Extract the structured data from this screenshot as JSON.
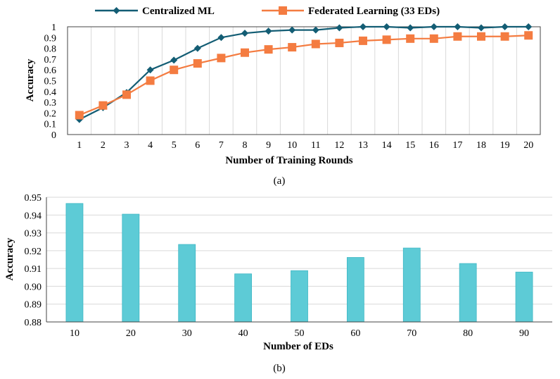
{
  "chart_data": [
    {
      "type": "line",
      "panel_label": "(a)",
      "title": "",
      "xlabel": "Number of Training Rounds",
      "ylabel": "Accuracy",
      "x": [
        1,
        2,
        3,
        4,
        5,
        6,
        7,
        8,
        9,
        10,
        11,
        12,
        13,
        14,
        15,
        16,
        17,
        18,
        19,
        20
      ],
      "ylim": [
        0,
        1
      ],
      "yticks": [
        "0",
        "0.1",
        "0.2",
        "0.3",
        "0.4",
        "0.5",
        "0.6",
        "0.7",
        "0.8",
        "0.9",
        "1"
      ],
      "grid": "vertical",
      "legend_position": "top",
      "series": [
        {
          "name": "Centralized ML",
          "color": "#135d74",
          "marker": "diamond",
          "values": [
            0.14,
            0.25,
            0.39,
            0.6,
            0.69,
            0.8,
            0.9,
            0.94,
            0.96,
            0.97,
            0.97,
            0.99,
            1.0,
            1.0,
            0.99,
            1.0,
            1.0,
            0.99,
            1.0,
            1.0
          ]
        },
        {
          "name": "Federated Learning (33 EDs)",
          "color": "#f47c41",
          "marker": "square",
          "values": [
            0.18,
            0.27,
            0.37,
            0.5,
            0.6,
            0.66,
            0.71,
            0.76,
            0.79,
            0.81,
            0.84,
            0.85,
            0.87,
            0.88,
            0.89,
            0.89,
            0.91,
            0.91,
            0.91,
            0.92
          ]
        }
      ]
    },
    {
      "type": "bar",
      "panel_label": "(b)",
      "title": "",
      "xlabel": "Number of EDs",
      "ylabel": "Accuracy",
      "categories": [
        "10",
        "20",
        "30",
        "40",
        "50",
        "60",
        "70",
        "80",
        "90"
      ],
      "values": [
        0.9465,
        0.9405,
        0.9235,
        0.907,
        0.9088,
        0.9162,
        0.9215,
        0.9128,
        0.908
      ],
      "ylim": [
        0.88,
        0.95
      ],
      "yticks": [
        "0.88",
        "0.89",
        "0.90",
        "0.91",
        "0.92",
        "0.93",
        "0.94",
        "0.95"
      ],
      "bar_color": "#5dcbd6",
      "grid": "horizontal"
    }
  ]
}
